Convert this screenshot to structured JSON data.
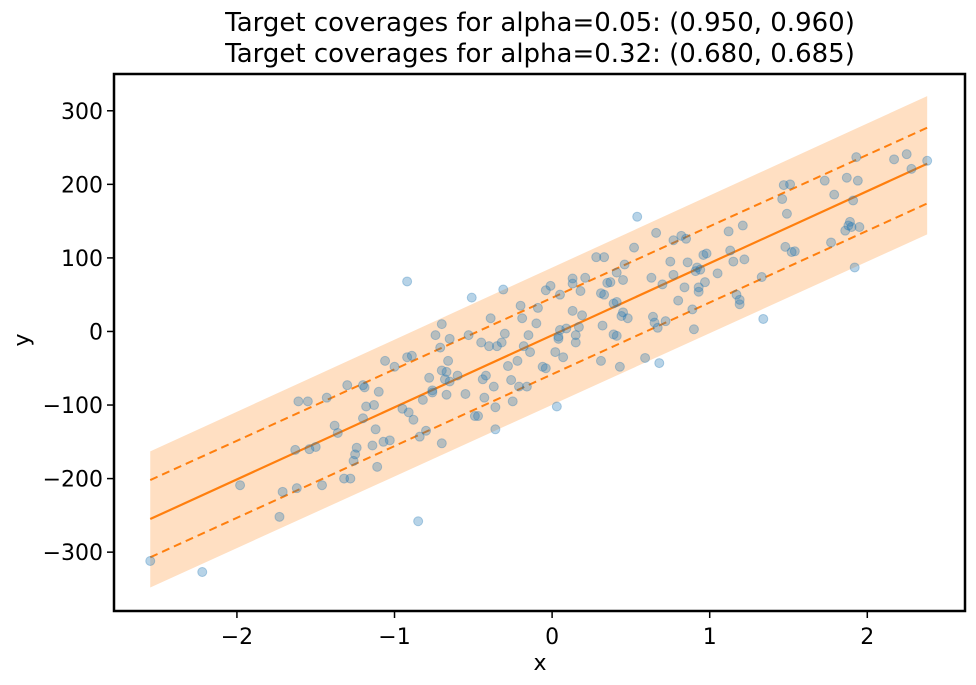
{
  "chart_data": {
    "type": "scatter",
    "title_lines": [
      "Target coverages for alpha=0.05: (0.950, 0.960)",
      "Target coverages for alpha=0.32: (0.680, 0.685)"
    ],
    "xlabel": "x",
    "ylabel": "y",
    "xlim": [
      -2.78,
      2.62
    ],
    "ylim": [
      -380,
      350
    ],
    "x_ticks": [
      -2,
      -1,
      0,
      1,
      2
    ],
    "x_tick_labels": [
      "−2",
      "−1",
      "0",
      "1",
      "2"
    ],
    "y_ticks": [
      -300,
      -200,
      -100,
      0,
      100,
      200,
      300
    ],
    "y_tick_labels": [
      "−300",
      "−200",
      "−100",
      "0",
      "100",
      "200",
      "300"
    ],
    "grid": false,
    "colors": {
      "points": "#1f77b4",
      "prediction": "#ff7f0e",
      "band": "#ffdfc2"
    },
    "prediction_line": {
      "x": [
        -2.55,
        2.38
      ],
      "y": [
        -255,
        228
      ]
    },
    "interval_68": {
      "x": [
        -2.55,
        2.38
      ],
      "lower": [
        -307,
        174
      ],
      "upper": [
        -202,
        277
      ]
    },
    "interval_95": {
      "x": [
        -2.55,
        2.38
      ],
      "lower": [
        -348,
        132
      ],
      "upper": [
        -163,
        320
      ]
    },
    "series": [
      {
        "points": [
          [
            -2.55,
            -312
          ],
          [
            -2.22,
            -327
          ],
          [
            -1.98,
            -209
          ],
          [
            -1.73,
            -252
          ],
          [
            -1.71,
            -218
          ],
          [
            -1.63,
            -161
          ],
          [
            -1.62,
            -213
          ],
          [
            -1.61,
            -95
          ],
          [
            -1.55,
            -95
          ],
          [
            -1.54,
            -160
          ],
          [
            -1.5,
            -157
          ],
          [
            -1.46,
            -209
          ],
          [
            -1.43,
            -90
          ],
          [
            -1.38,
            -128
          ],
          [
            -1.36,
            -138
          ],
          [
            -1.32,
            -200
          ],
          [
            -1.3,
            -73
          ],
          [
            -1.28,
            -200
          ],
          [
            -1.26,
            -176
          ],
          [
            -1.25,
            -167
          ],
          [
            -1.24,
            -158
          ],
          [
            -1.2,
            -118
          ],
          [
            -1.2,
            -73
          ],
          [
            -1.19,
            -76
          ],
          [
            -1.18,
            -102
          ],
          [
            -1.14,
            -155
          ],
          [
            -1.13,
            -100
          ],
          [
            -1.12,
            -133
          ],
          [
            -1.11,
            -184
          ],
          [
            -1.1,
            -82
          ],
          [
            -1.07,
            -150
          ],
          [
            -1.06,
            -40
          ],
          [
            -1.03,
            -148
          ],
          [
            -1.0,
            -48
          ],
          [
            -0.95,
            -105
          ],
          [
            -0.92,
            -35
          ],
          [
            -0.92,
            68
          ],
          [
            -0.91,
            -110
          ],
          [
            -0.89,
            -33
          ],
          [
            -0.88,
            -120
          ],
          [
            -0.85,
            -258
          ],
          [
            -0.84,
            -143
          ],
          [
            -0.82,
            -93
          ],
          [
            -0.8,
            -135
          ],
          [
            -0.78,
            -63
          ],
          [
            -0.76,
            -83
          ],
          [
            -0.76,
            -80
          ],
          [
            -0.74,
            -5
          ],
          [
            -0.71,
            -22
          ],
          [
            -0.7,
            -152
          ],
          [
            -0.7,
            -53
          ],
          [
            -0.7,
            10
          ],
          [
            -0.68,
            -65
          ],
          [
            -0.67,
            -86
          ],
          [
            -0.67,
            -55
          ],
          [
            -0.66,
            -40
          ],
          [
            -0.65,
            -68
          ],
          [
            -0.65,
            -10
          ],
          [
            -0.6,
            -60
          ],
          [
            -0.55,
            -85
          ],
          [
            -0.53,
            -5
          ],
          [
            -0.51,
            46
          ],
          [
            -0.49,
            -115
          ],
          [
            -0.47,
            -115
          ],
          [
            -0.45,
            -15
          ],
          [
            -0.44,
            -65
          ],
          [
            -0.43,
            -90
          ],
          [
            -0.42,
            -60
          ],
          [
            -0.4,
            -20
          ],
          [
            -0.39,
            18
          ],
          [
            -0.37,
            -75
          ],
          [
            -0.36,
            -133
          ],
          [
            -0.36,
            -103
          ],
          [
            -0.35,
            -20
          ],
          [
            -0.32,
            -15
          ],
          [
            -0.31,
            57
          ],
          [
            -0.3,
            -3
          ],
          [
            -0.28,
            -47
          ],
          [
            -0.26,
            -66
          ],
          [
            -0.25,
            -95
          ],
          [
            -0.22,
            -40
          ],
          [
            -0.21,
            -75
          ],
          [
            -0.2,
            35
          ],
          [
            -0.19,
            18
          ],
          [
            -0.18,
            -20
          ],
          [
            -0.16,
            -75
          ],
          [
            -0.15,
            -5
          ],
          [
            -0.14,
            -28
          ],
          [
            -0.1,
            11
          ],
          [
            -0.09,
            32
          ],
          [
            -0.06,
            -48
          ],
          [
            -0.04,
            -50
          ],
          [
            -0.04,
            56
          ],
          [
            -0.01,
            62
          ],
          [
            0.02,
            -28
          ],
          [
            0.03,
            -102
          ],
          [
            0.04,
            -7
          ],
          [
            0.04,
            -10
          ],
          [
            0.05,
            50
          ],
          [
            0.05,
            2
          ],
          [
            0.07,
            -35
          ],
          [
            0.09,
            4
          ],
          [
            0.13,
            65
          ],
          [
            0.13,
            72
          ],
          [
            0.13,
            28
          ],
          [
            0.15,
            -5
          ],
          [
            0.15,
            -15
          ],
          [
            0.17,
            6
          ],
          [
            0.18,
            55
          ],
          [
            0.19,
            22
          ],
          [
            0.21,
            73
          ],
          [
            0.28,
            101
          ],
          [
            0.31,
            52
          ],
          [
            0.31,
            -40
          ],
          [
            0.32,
            8
          ],
          [
            0.33,
            101
          ],
          [
            0.33,
            50
          ],
          [
            0.35,
            66
          ],
          [
            0.37,
            67
          ],
          [
            0.39,
            -4
          ],
          [
            0.39,
            38
          ],
          [
            0.41,
            40
          ],
          [
            0.41,
            -6
          ],
          [
            0.41,
            80
          ],
          [
            0.43,
            -48
          ],
          [
            0.44,
            21
          ],
          [
            0.45,
            26
          ],
          [
            0.45,
            70
          ],
          [
            0.46,
            91
          ],
          [
            0.48,
            18
          ],
          [
            0.52,
            114
          ],
          [
            0.54,
            156
          ],
          [
            0.59,
            -36
          ],
          [
            0.63,
            73
          ],
          [
            0.64,
            20
          ],
          [
            0.65,
            12
          ],
          [
            0.66,
            134
          ],
          [
            0.67,
            5
          ],
          [
            0.68,
            -43
          ],
          [
            0.7,
            64
          ],
          [
            0.72,
            14
          ],
          [
            0.75,
            95
          ],
          [
            0.77,
            77
          ],
          [
            0.77,
            124
          ],
          [
            0.8,
            42
          ],
          [
            0.82,
            130
          ],
          [
            0.84,
            60
          ],
          [
            0.85,
            126
          ],
          [
            0.86,
            94
          ],
          [
            0.89,
            30
          ],
          [
            0.9,
            3
          ],
          [
            0.91,
            82
          ],
          [
            0.92,
            87
          ],
          [
            0.93,
            60
          ],
          [
            0.93,
            54
          ],
          [
            0.94,
            84
          ],
          [
            0.96,
            104
          ],
          [
            0.97,
            67
          ],
          [
            0.98,
            106
          ],
          [
            1.05,
            79
          ],
          [
            1.12,
            136
          ],
          [
            1.13,
            110
          ],
          [
            1.15,
            95
          ],
          [
            1.17,
            50
          ],
          [
            1.19,
            37
          ],
          [
            1.19,
            43
          ],
          [
            1.21,
            144
          ],
          [
            1.22,
            98
          ],
          [
            1.33,
            74
          ],
          [
            1.34,
            17
          ],
          [
            1.46,
            180
          ],
          [
            1.47,
            199
          ],
          [
            1.48,
            115
          ],
          [
            1.49,
            160
          ],
          [
            1.51,
            200
          ],
          [
            1.52,
            108
          ],
          [
            1.54,
            109
          ],
          [
            1.73,
            205
          ],
          [
            1.77,
            121
          ],
          [
            1.79,
            186
          ],
          [
            1.86,
            137
          ],
          [
            1.87,
            209
          ],
          [
            1.88,
            144
          ],
          [
            1.89,
            149
          ],
          [
            1.9,
            142
          ],
          [
            1.91,
            178
          ],
          [
            1.92,
            87
          ],
          [
            1.93,
            237
          ],
          [
            1.94,
            205
          ],
          [
            1.95,
            142
          ],
          [
            2.17,
            234
          ],
          [
            2.25,
            241
          ],
          [
            2.28,
            221
          ],
          [
            2.38,
            232
          ]
        ]
      }
    ]
  }
}
